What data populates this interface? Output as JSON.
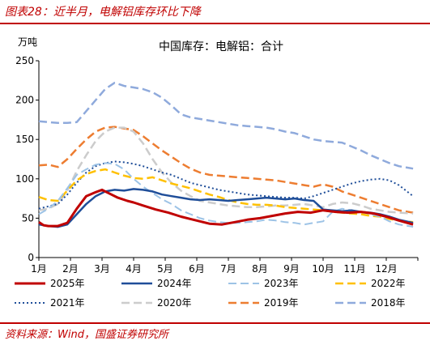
{
  "figure_title": "图表28：近半月，电解铝库存环比下降",
  "source": "资料来源：Wind，国盛证券研究所",
  "colors": {
    "accent": "#c00000"
  },
  "chart_data": {
    "type": "line",
    "title": "中国库存：电解铝：合计",
    "ylabel": "万吨",
    "ylim": [
      0,
      250
    ],
    "yticks": [
      0,
      50,
      100,
      150,
      200,
      250
    ],
    "xticks": [
      "1月",
      "2月",
      "3月",
      "4月",
      "5月",
      "6月",
      "7月",
      "8月",
      "9月",
      "10月",
      "11月",
      "12月"
    ],
    "x_unit": "month",
    "xlim": [
      1,
      13
    ],
    "grid": false,
    "legend_position": "bottom",
    "series": [
      {
        "name": "2025年",
        "color": "#c00000",
        "dash": "solid",
        "width": 3,
        "x": [
          1,
          1.15,
          1.3,
          1.6,
          1.9,
          2.2,
          2.5,
          2.8,
          3.0,
          3.2,
          3.5,
          3.8,
          4.0,
          4.3,
          4.7,
          5.1,
          5.5,
          5.8,
          6.1,
          6.4,
          6.8,
          7.2,
          7.6,
          8.0,
          8.4,
          8.8,
          9.2,
          9.6,
          10.0,
          10.4,
          10.8,
          11.2,
          11.6,
          12.0,
          12.4,
          12.85
        ],
        "y": [
          45,
          41,
          40,
          40,
          44,
          62,
          78,
          83,
          86,
          82,
          76,
          72,
          70,
          66,
          61,
          57,
          52,
          49,
          46,
          43,
          42,
          45,
          48,
          50,
          53,
          56,
          58,
          57,
          60,
          58,
          57,
          58,
          56,
          52,
          47,
          42
        ]
      },
      {
        "name": "2024年",
        "color": "#1f4e99",
        "dash": "solid",
        "width": 2.5,
        "x": [
          1,
          1.3,
          1.6,
          1.9,
          2.2,
          2.5,
          2.8,
          3.1,
          3.4,
          3.7,
          4.0,
          4.3,
          4.6,
          4.9,
          5.2,
          5.5,
          5.8,
          6.1,
          6.4,
          6.7,
          7.0,
          7.3,
          7.6,
          7.9,
          8.2,
          8.5,
          8.8,
          9.1,
          9.4,
          9.7,
          10.0,
          10.3,
          10.6,
          10.9,
          11.2,
          11.5,
          11.8,
          12.1,
          12.4,
          12.85
        ],
        "y": [
          42,
          40,
          39,
          42,
          55,
          68,
          78,
          84,
          86,
          85,
          87,
          86,
          84,
          80,
          78,
          76,
          74,
          73,
          74,
          73,
          72,
          73,
          74,
          75,
          76,
          75,
          74,
          75,
          73,
          72,
          61,
          60,
          59,
          60,
          58,
          57,
          55,
          52,
          48,
          44
        ]
      },
      {
        "name": "2023年",
        "color": "#9dc3e6",
        "dash": "10 5",
        "width": 2,
        "x": [
          1,
          1.3,
          1.6,
          1.9,
          2.2,
          2.5,
          2.8,
          3.1,
          3.4,
          3.7,
          4.0,
          4.3,
          4.6,
          4.9,
          5.2,
          5.5,
          5.8,
          6.1,
          6.4,
          6.7,
          7.0,
          7.3,
          7.6,
          7.9,
          8.2,
          8.5,
          8.8,
          9.1,
          9.4,
          9.7,
          10.0,
          10.3,
          10.6,
          10.9,
          11.2,
          11.5,
          11.8,
          12.1,
          12.4,
          12.85
        ],
        "y": [
          55,
          62,
          72,
          88,
          105,
          112,
          118,
          120,
          119,
          112,
          100,
          90,
          82,
          74,
          68,
          60,
          55,
          50,
          47,
          45,
          44,
          44,
          45,
          46,
          48,
          47,
          45,
          44,
          42,
          44,
          46,
          58,
          62,
          60,
          58,
          55,
          52,
          46,
          42,
          39
        ]
      },
      {
        "name": "2022年",
        "color": "#ffc000",
        "dash": "10 5",
        "width": 2.5,
        "x": [
          1,
          1.3,
          1.6,
          1.9,
          2.2,
          2.5,
          2.8,
          3.1,
          3.4,
          3.7,
          4.0,
          4.3,
          4.6,
          4.9,
          5.2,
          5.5,
          5.8,
          6.1,
          6.4,
          6.7,
          7.0,
          7.3,
          7.6,
          7.9,
          8.2,
          8.5,
          8.8,
          9.1,
          9.4,
          9.7,
          10.0,
          10.3,
          10.6,
          10.9,
          11.2,
          11.5,
          11.8,
          12.1,
          12.4,
          12.85
        ],
        "y": [
          77,
          73,
          72,
          85,
          98,
          106,
          110,
          112,
          108,
          104,
          101,
          100,
          102,
          98,
          94,
          91,
          88,
          84,
          80,
          77,
          73,
          70,
          68,
          67,
          67,
          66,
          64,
          63,
          62,
          61,
          60,
          58,
          57,
          56,
          55,
          53,
          52,
          49,
          47,
          45
        ]
      },
      {
        "name": "2021年",
        "color": "#1f4e99",
        "dash": "2 3",
        "width": 2,
        "x": [
          1,
          1.3,
          1.6,
          1.9,
          2.2,
          2.5,
          2.8,
          3.1,
          3.4,
          3.7,
          4.0,
          4.3,
          4.6,
          4.9,
          5.2,
          5.5,
          5.8,
          6.1,
          6.4,
          6.7,
          7.0,
          7.3,
          7.6,
          7.9,
          8.2,
          8.5,
          8.8,
          9.1,
          9.4,
          9.7,
          10.0,
          10.3,
          10.6,
          10.9,
          11.2,
          11.5,
          11.8,
          12.1,
          12.4,
          12.85
        ],
        "y": [
          62,
          65,
          68,
          80,
          95,
          108,
          116,
          120,
          122,
          121,
          119,
          116,
          112,
          108,
          105,
          100,
          95,
          92,
          89,
          86,
          84,
          82,
          80,
          79,
          78,
          77,
          76,
          76,
          75,
          78,
          82,
          86,
          90,
          94,
          97,
          99,
          100,
          98,
          92,
          78
        ]
      },
      {
        "name": "2020年",
        "color": "#cccccc",
        "dash": "10 5",
        "width": 2.5,
        "x": [
          1,
          1.3,
          1.6,
          1.9,
          2.2,
          2.5,
          2.8,
          3.1,
          3.4,
          3.7,
          4.0,
          4.3,
          4.6,
          4.9,
          5.2,
          5.5,
          5.8,
          6.1,
          6.4,
          6.7,
          7.0,
          7.3,
          7.6,
          7.9,
          8.2,
          8.5,
          8.8,
          9.1,
          9.4,
          9.7,
          10.0,
          10.3,
          10.6,
          10.9,
          11.2,
          11.5,
          11.8,
          12.1,
          12.4,
          12.85
        ],
        "y": [
          60,
          62,
          68,
          85,
          110,
          130,
          148,
          160,
          165,
          165,
          160,
          145,
          125,
          108,
          95,
          85,
          78,
          72,
          70,
          68,
          66,
          65,
          64,
          64,
          65,
          66,
          66,
          67,
          68,
          66,
          64,
          68,
          70,
          69,
          66,
          62,
          60,
          58,
          57,
          56
        ]
      },
      {
        "name": "2019年",
        "color": "#ed7d31",
        "dash": "10 5",
        "width": 2.5,
        "x": [
          1,
          1.3,
          1.6,
          1.9,
          2.2,
          2.5,
          2.8,
          3.1,
          3.4,
          3.7,
          4.0,
          4.3,
          4.6,
          4.9,
          5.2,
          5.5,
          5.8,
          6.1,
          6.4,
          6.7,
          7.0,
          7.3,
          7.6,
          7.9,
          8.2,
          8.5,
          8.8,
          9.1,
          9.4,
          9.7,
          10.0,
          10.3,
          10.6,
          10.9,
          11.2,
          11.5,
          11.8,
          12.1,
          12.4,
          12.85
        ],
        "y": [
          117,
          118,
          115,
          125,
          138,
          150,
          160,
          165,
          166,
          164,
          162,
          154,
          145,
          136,
          128,
          120,
          113,
          108,
          105,
          104,
          103,
          102,
          101,
          100,
          99,
          98,
          96,
          94,
          92,
          90,
          93,
          90,
          84,
          80,
          76,
          72,
          68,
          64,
          60,
          57
        ]
      },
      {
        "name": "2018年",
        "color": "#8faadc",
        "dash": "10 5",
        "width": 2.5,
        "x": [
          1,
          1.3,
          1.6,
          1.9,
          2.2,
          2.5,
          2.8,
          3.1,
          3.4,
          3.7,
          4.0,
          4.3,
          4.6,
          4.9,
          5.2,
          5.5,
          5.8,
          6.1,
          6.4,
          6.7,
          7.0,
          7.3,
          7.6,
          7.9,
          8.2,
          8.5,
          8.8,
          9.1,
          9.4,
          9.7,
          10.0,
          10.3,
          10.6,
          10.9,
          11.2,
          11.5,
          11.8,
          12.1,
          12.4,
          12.85
        ],
        "y": [
          173,
          172,
          171,
          171,
          172,
          186,
          200,
          214,
          222,
          218,
          216,
          214,
          210,
          203,
          193,
          182,
          178,
          176,
          174,
          172,
          170,
          168,
          167,
          166,
          165,
          163,
          160,
          158,
          154,
          150,
          148,
          147,
          146,
          141,
          136,
          130,
          125,
          120,
          116,
          113
        ]
      }
    ]
  }
}
